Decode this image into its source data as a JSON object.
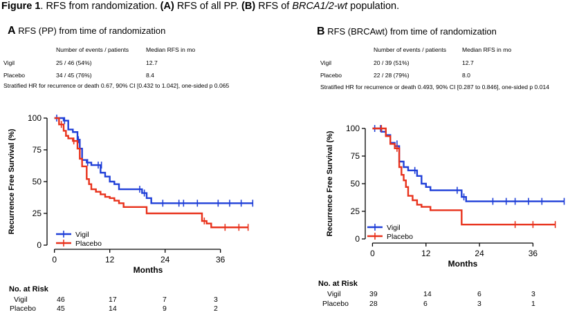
{
  "figure": {
    "title_prefix": "Figure 1",
    "title_rest_1": ". RFS from randomization. ",
    "title_a": "(A)",
    "title_rest_2": " RFS of all PP. ",
    "title_b": "(B)",
    "title_rest_3": " RFS of ",
    "title_italic": "BRCA1/2-wt",
    "title_rest_4": " population."
  },
  "panels": [
    {
      "letter": "A",
      "heading": "RFS (PP) from time of randomization",
      "col_events": "Number of events / patients",
      "col_median": "Median RFS in mo",
      "rows": [
        {
          "group": "Vigil",
          "events": "25 / 46 (54%)",
          "median": "12.7"
        },
        {
          "group": "Placebo",
          "events": "34 / 45 (76%)",
          "median": "8.4"
        }
      ],
      "hr": "Stratified HR for recurrence or death 0.67, 90% CI [0.432 to 1.042], one-sided p 0.065",
      "risk_header": "No. at Risk",
      "risk_rows": [
        {
          "group": "Vigil",
          "counts": [
            "46",
            "17",
            "7",
            "3"
          ]
        },
        {
          "group": "Placebo",
          "counts": [
            "45",
            "14",
            "9",
            "2"
          ]
        }
      ]
    },
    {
      "letter": "B",
      "heading": "RFS (BRCAwt) from time of randomization",
      "col_events": "Number of events / patients",
      "col_median": "Median RFS in mo",
      "rows": [
        {
          "group": "Vigil",
          "events": "20 / 39 (51%)",
          "median": "12.7"
        },
        {
          "group": "Placebo",
          "events": "22 / 28 (79%)",
          "median": "8.0"
        }
      ],
      "hr": "Stratified HR for recurrence or death 0.493, 90% CI [0.287 to 0.846], one-sided p 0.014",
      "risk_header": "No. at Risk",
      "risk_rows": [
        {
          "group": "Vigil",
          "counts": [
            "39",
            "14",
            "6",
            "3"
          ]
        },
        {
          "group": "Placebo",
          "counts": [
            "28",
            "6",
            "3",
            "1"
          ]
        }
      ]
    }
  ],
  "chart_data": [
    {
      "type": "line",
      "subtype": "kaplan-meier step",
      "xlabel": "Months",
      "ylabel": "Recurrence Free Survival (%)",
      "xlim": [
        -1,
        44
      ],
      "ylim": [
        0,
        100
      ],
      "xticks": [
        0,
        12,
        24,
        36
      ],
      "yticks": [
        0,
        25,
        50,
        75,
        100
      ],
      "legend": "bottom-left",
      "series": [
        {
          "name": "Vigil",
          "color": "#1f3fd8",
          "x": [
            0,
            2,
            3,
            4,
            5,
            5.5,
            6,
            7,
            8,
            9,
            10,
            11,
            12,
            13,
            14,
            19,
            20,
            21,
            43
          ],
          "y": [
            100,
            98,
            91,
            89,
            83,
            76,
            67,
            65,
            63,
            63,
            57,
            54,
            50,
            48,
            44,
            41,
            37,
            33,
            33
          ],
          "censor_x": [
            0.5,
            2.2,
            5.2,
            7.2,
            9.5,
            10.2,
            18.5,
            19.5,
            23.5,
            27,
            28,
            31,
            35.5,
            38,
            40.5,
            43
          ],
          "censor_y": [
            100,
            98,
            83,
            65,
            63,
            63,
            44,
            41,
            33,
            33,
            33,
            33,
            33,
            33,
            33,
            33
          ]
        },
        {
          "name": "Placebo",
          "color": "#e8311b",
          "x": [
            0,
            1,
            2,
            2.5,
            3,
            4,
            5,
            5.5,
            6,
            7,
            7.5,
            8,
            9,
            10,
            11,
            12,
            13,
            14,
            15,
            19,
            20,
            32,
            33,
            34,
            42
          ],
          "y": [
            100,
            95,
            90,
            86,
            84,
            82,
            76,
            68,
            62,
            52,
            48,
            44,
            42,
            40,
            38,
            37,
            35,
            33,
            30,
            30,
            25,
            19,
            17,
            14,
            14
          ],
          "censor_x": [
            1.5,
            4.2,
            32.5,
            37,
            40,
            42
          ],
          "censor_y": [
            95,
            82,
            19,
            14,
            14,
            14
          ]
        }
      ]
    },
    {
      "type": "line",
      "subtype": "kaplan-meier step",
      "xlabel": "Months",
      "ylabel": "Recurrence Free Survival (%)",
      "xlim": [
        -1,
        44
      ],
      "ylim": [
        0,
        100
      ],
      "xticks": [
        0,
        12,
        24,
        36
      ],
      "yticks": [
        0,
        25,
        50,
        75,
        100
      ],
      "legend": "bottom-left",
      "series": [
        {
          "name": "Vigil",
          "color": "#1f3fd8",
          "x": [
            0,
            2,
            3,
            4,
            5,
            6,
            7,
            8,
            10,
            11,
            12,
            13,
            20,
            21,
            43
          ],
          "y": [
            100,
            97,
            94,
            87,
            84,
            70,
            65,
            62,
            57,
            50,
            47,
            44,
            38,
            34,
            34
          ],
          "censor_x": [
            0.5,
            1.8,
            5.5,
            9.5,
            19,
            20.5,
            27,
            30,
            32,
            35,
            38,
            43
          ],
          "censor_y": [
            100,
            100,
            86,
            62,
            44,
            38,
            34,
            34,
            34,
            34,
            34,
            34
          ]
        },
        {
          "name": "Placebo",
          "color": "#e8311b",
          "x": [
            0,
            3,
            4,
            5,
            6,
            6.5,
            7,
            7.5,
            8,
            9,
            10,
            11,
            13,
            20,
            41
          ],
          "y": [
            100,
            93,
            86,
            82,
            65,
            58,
            53,
            47,
            39,
            35,
            31,
            29,
            26,
            13,
            13
          ],
          "censor_x": [
            2,
            5.5,
            32,
            36,
            41
          ],
          "censor_y": [
            100,
            82,
            13,
            13,
            13
          ]
        }
      ]
    }
  ]
}
